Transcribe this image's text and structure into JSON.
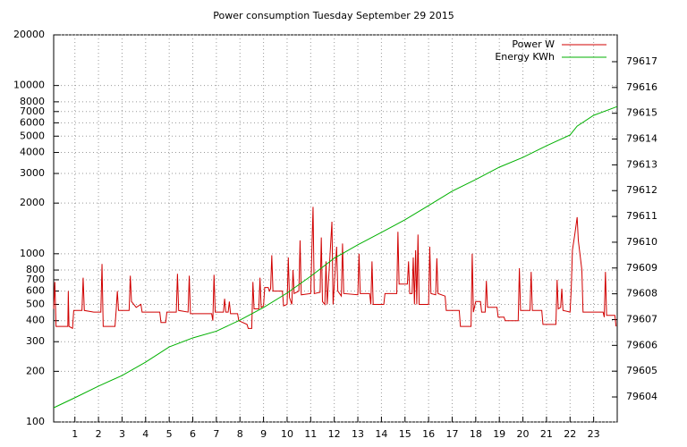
{
  "chart_data": {
    "type": "line",
    "title": "Power consumption Tuesday September 29 2015",
    "xlim": [
      0.1,
      24
    ],
    "xticks": [
      1,
      2,
      3,
      4,
      5,
      6,
      7,
      8,
      9,
      10,
      11,
      12,
      13,
      14,
      15,
      16,
      17,
      18,
      19,
      20,
      21,
      22,
      23
    ],
    "ylim": [
      100,
      20000
    ],
    "yscale": "log",
    "yticks": [
      100,
      200,
      300,
      400,
      500,
      600,
      700,
      800,
      1000,
      2000,
      3000,
      4000,
      5000,
      6000,
      7000,
      8000,
      10000,
      20000
    ],
    "y2lim": [
      79603.03,
      79618.04
    ],
    "y2ticks": [
      79604,
      79605,
      79606,
      79607,
      79608,
      79609,
      79610,
      79611,
      79612,
      79613,
      79614,
      79615,
      79616,
      79617
    ],
    "grid": true,
    "legend": "top-right",
    "series": [
      {
        "name": "Power W",
        "color": "#d00000",
        "x": [
          0.1,
          0.15,
          0.2,
          0.7,
          0.72,
          0.75,
          0.9,
          0.95,
          1.3,
          1.35,
          1.4,
          1.8,
          2.1,
          2.15,
          2.2,
          2.7,
          2.75,
          2.8,
          2.85,
          3.3,
          3.35,
          3.4,
          3.6,
          3.8,
          3.85,
          4.6,
          4.65,
          4.85,
          4.9,
          5.3,
          5.35,
          5.4,
          5.8,
          5.85,
          5.9,
          6.8,
          6.85,
          6.9,
          6.95,
          7.3,
          7.35,
          7.4,
          7.5,
          7.55,
          7.6,
          7.9,
          7.95,
          8.3,
          8.35,
          8.5,
          8.55,
          8.6,
          8.8,
          8.85,
          8.9,
          9.0,
          9.05,
          9.2,
          9.25,
          9.3,
          9.35,
          9.4,
          9.8,
          9.85,
          10.0,
          10.05,
          10.1,
          10.2,
          10.25,
          10.3,
          10.5,
          10.55,
          10.6,
          11.0,
          11.1,
          11.15,
          11.4,
          11.45,
          11.5,
          11.6,
          11.65,
          11.7,
          11.9,
          11.95,
          12.1,
          12.15,
          12.3,
          12.35,
          12.4,
          13.0,
          13.05,
          13.1,
          13.5,
          13.55,
          13.6,
          13.65,
          14.1,
          14.15,
          14.65,
          14.7,
          14.75,
          15.1,
          15.15,
          15.2,
          15.3,
          15.35,
          15.4,
          15.45,
          15.5,
          15.55,
          15.6,
          16.0,
          16.05,
          16.1,
          16.3,
          16.35,
          16.4,
          16.7,
          16.75,
          17.3,
          17.35,
          17.8,
          17.85,
          17.9,
          18.0,
          18.2,
          18.25,
          18.4,
          18.45,
          18.5,
          18.9,
          18.95,
          19.2,
          19.25,
          19.8,
          19.85,
          19.9,
          20.3,
          20.35,
          20.4,
          20.8,
          20.85,
          21.4,
          21.45,
          21.5,
          21.6,
          21.65,
          21.7,
          22.0,
          22.05,
          22.1,
          22.2,
          22.3,
          22.35,
          22.5,
          22.55,
          23.4,
          23.45,
          23.5,
          23.55,
          23.9,
          23.95
        ],
        "values": [
          470,
          680,
          370,
          370,
          600,
          370,
          360,
          460,
          460,
          720,
          460,
          450,
          450,
          870,
          370,
          370,
          460,
          600,
          460,
          460,
          740,
          520,
          480,
          500,
          450,
          450,
          390,
          390,
          450,
          450,
          760,
          460,
          450,
          740,
          440,
          440,
          400,
          750,
          450,
          450,
          540,
          450,
          450,
          520,
          440,
          440,
          400,
          380,
          360,
          360,
          680,
          470,
          470,
          720,
          480,
          490,
          630,
          630,
          600,
          620,
          980,
          600,
          600,
          490,
          500,
          950,
          550,
          500,
          800,
          580,
          600,
          1200,
          570,
          580,
          1900,
          580,
          590,
          1250,
          520,
          500,
          900,
          500,
          1550,
          500,
          1100,
          600,
          560,
          1150,
          580,
          570,
          1000,
          580,
          580,
          500,
          900,
          500,
          500,
          580,
          580,
          1350,
          660,
          660,
          900,
          580,
          580,
          950,
          500,
          1050,
          500,
          1300,
          500,
          500,
          1100,
          580,
          570,
          940,
          580,
          560,
          460,
          460,
          370,
          370,
          1000,
          450,
          520,
          520,
          450,
          450,
          690,
          480,
          480,
          420,
          420,
          400,
          400,
          820,
          460,
          460,
          780,
          460,
          460,
          380,
          380,
          700,
          470,
          480,
          620,
          460,
          450,
          620,
          1050,
          1300,
          1650,
          1200,
          800,
          450,
          450,
          420,
          780,
          430,
          430,
          370
        ]
      },
      {
        "name": "Energy KWh",
        "color": "#00b000",
        "axis": "y2",
        "x": [
          0.1,
          1,
          2,
          3,
          4,
          5,
          6,
          7,
          8,
          9,
          10,
          11,
          12,
          13,
          14,
          15,
          16,
          17,
          18,
          19,
          20,
          21,
          22,
          22.3,
          23,
          24
        ],
        "values": [
          79603.58,
          79603.97,
          79604.42,
          79604.83,
          79605.35,
          79605.94,
          79606.29,
          79606.55,
          79606.98,
          79607.47,
          79608.03,
          79608.68,
          79609.38,
          79609.9,
          79610.38,
          79610.87,
          79611.42,
          79611.98,
          79612.43,
          79612.91,
          79613.29,
          79613.74,
          79614.16,
          79614.5,
          79614.92,
          79615.26
        ]
      }
    ]
  }
}
